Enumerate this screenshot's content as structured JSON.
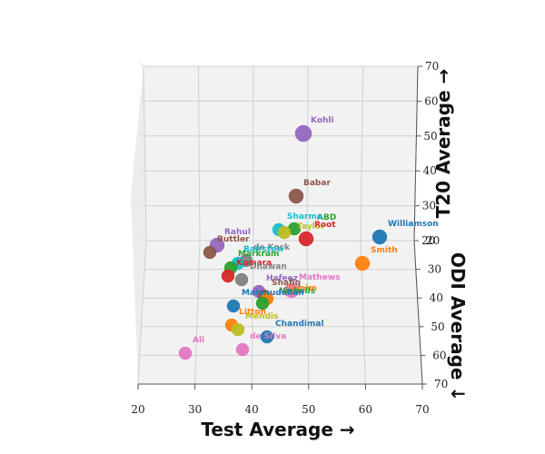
{
  "chart_data": {
    "type": "scatter3d",
    "x_axis": {
      "label": "Test Average →",
      "ticks": [
        20,
        30,
        40,
        50,
        60,
        70
      ],
      "range": [
        20,
        70
      ]
    },
    "z_axis": {
      "label": "T20 Average →",
      "ticks": [
        20,
        30,
        40,
        50,
        60,
        70
      ],
      "range": [
        20,
        70
      ]
    },
    "y_axis": {
      "label": "ODI Average ↓",
      "ticks": [
        20,
        30,
        40,
        50,
        60,
        70
      ],
      "range": [
        20,
        70
      ]
    },
    "grid": true,
    "points": [
      {
        "name": "Kohli",
        "color": "#9467bd"
      },
      {
        "name": "Babar",
        "color": "#8c564b"
      },
      {
        "name": "Williamson",
        "color": "#1f77b4"
      },
      {
        "name": "Smith",
        "color": "#ff7f0e"
      },
      {
        "name": "Sharma",
        "color": "#17becf"
      },
      {
        "name": "ABD",
        "color": "#2ca02c"
      },
      {
        "name": "Root",
        "color": "#d62728"
      },
      {
        "name": "Taylor",
        "color": "#bcbd22"
      },
      {
        "name": "Rahul",
        "color": "#9467bd"
      },
      {
        "name": "Buttler",
        "color": "#8c564b"
      },
      {
        "name": "de Kock",
        "color": "#7f7f7f"
      },
      {
        "name": "Bairstow",
        "color": "#17becf"
      },
      {
        "name": "Markram",
        "color": "#2ca02c"
      },
      {
        "name": "Kumara",
        "color": "#d62728"
      },
      {
        "name": "Dhawan",
        "color": "#7f7f7f"
      },
      {
        "name": "Hafeez",
        "color": "#9467bd"
      },
      {
        "name": "Mathews",
        "color": "#e377c2"
      },
      {
        "name": "Shafiq",
        "color": "#8c564b"
      },
      {
        "name": "Tamim",
        "color": "#ff7f0e"
      },
      {
        "name": "Mahmudullah",
        "color": "#1f77b4"
      },
      {
        "name": "Nicholls",
        "color": "#2ca02c"
      },
      {
        "name": "Litton",
        "color": "#ff7f0e"
      },
      {
        "name": "Mendis",
        "color": "#bcbd22"
      },
      {
        "name": "Chandimal",
        "color": "#1f77b4"
      },
      {
        "name": "de Silva",
        "color": "#e377c2"
      },
      {
        "name": "Ali",
        "color": "#e377c2"
      }
    ]
  }
}
